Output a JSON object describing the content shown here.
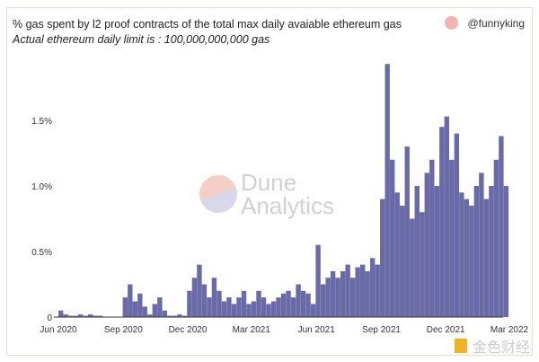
{
  "header": {
    "title": "% gas spent by l2 proof contracts of the total max daily avaiable ethereum gas",
    "subtitle": "Actual ethereum daily limit is : 100,000,000,000 gas",
    "author": "@funnyking"
  },
  "watermark": {
    "line1": "Dune",
    "line2": "Analytics"
  },
  "corner_logo": "金色财经",
  "colors": {
    "bar": "#6b6aa8",
    "accent": "#f2b5ad"
  },
  "chart_data": {
    "type": "bar",
    "title": "% gas spent by l2 proof contracts of the total max daily avaiable ethereum gas",
    "xlabel": "",
    "ylabel": "",
    "ylim": [
      0,
      2.0
    ],
    "grid": false,
    "legend": "none",
    "y_ticks": [
      {
        "v": 0,
        "label": "0"
      },
      {
        "v": 0.5,
        "label": "0.5%"
      },
      {
        "v": 1.0,
        "label": "1.0%"
      },
      {
        "v": 1.5,
        "label": "1.5%"
      }
    ],
    "x_ticks": [
      {
        "d": "2020-06-01",
        "label": "Jun 2020"
      },
      {
        "d": "2020-09-01",
        "label": "Sep 2020"
      },
      {
        "d": "2020-12-01",
        "label": "Dec 2020"
      },
      {
        "d": "2021-03-01",
        "label": "Mar 2021"
      },
      {
        "d": "2021-06-01",
        "label": "Jun 2021"
      },
      {
        "d": "2021-09-01",
        "label": "Sep 2021"
      },
      {
        "d": "2021-12-01",
        "label": "Dec 2021"
      },
      {
        "d": "2022-03-01",
        "label": "Mar 2022"
      }
    ],
    "x": [
      "2020-06-01",
      "2020-06-08",
      "2020-06-15",
      "2020-06-22",
      "2020-06-29",
      "2020-07-06",
      "2020-07-13",
      "2020-07-20",
      "2020-07-27",
      "2020-08-03",
      "2020-08-10",
      "2020-08-17",
      "2020-08-24",
      "2020-08-31",
      "2020-09-07",
      "2020-09-14",
      "2020-09-21",
      "2020-09-28",
      "2020-10-05",
      "2020-10-12",
      "2020-10-19",
      "2020-10-26",
      "2020-11-02",
      "2020-11-09",
      "2020-11-16",
      "2020-11-23",
      "2020-11-30",
      "2020-12-07",
      "2020-12-14",
      "2020-12-21",
      "2020-12-28",
      "2021-01-04",
      "2021-01-11",
      "2021-01-18",
      "2021-01-25",
      "2021-02-01",
      "2021-02-08",
      "2021-02-15",
      "2021-02-22",
      "2021-03-01",
      "2021-03-08",
      "2021-03-15",
      "2021-03-22",
      "2021-03-29",
      "2021-04-05",
      "2021-04-12",
      "2021-04-19",
      "2021-04-26",
      "2021-05-03",
      "2021-05-10",
      "2021-05-17",
      "2021-05-24",
      "2021-05-31",
      "2021-06-07",
      "2021-06-14",
      "2021-06-21",
      "2021-06-28",
      "2021-07-05",
      "2021-07-12",
      "2021-07-19",
      "2021-07-26",
      "2021-08-02",
      "2021-08-09",
      "2021-08-16",
      "2021-08-23",
      "2021-08-30",
      "2021-09-06",
      "2021-09-13",
      "2021-09-20",
      "2021-09-27",
      "2021-10-04",
      "2021-10-11",
      "2021-10-18",
      "2021-10-25",
      "2021-11-01",
      "2021-11-08",
      "2021-11-15",
      "2021-11-22",
      "2021-11-29",
      "2021-12-06",
      "2021-12-13",
      "2021-12-20",
      "2021-12-27",
      "2022-01-03",
      "2022-01-10",
      "2022-01-17",
      "2022-01-24",
      "2022-01-31",
      "2022-02-07",
      "2022-02-14",
      "2022-02-21"
    ],
    "values": [
      0.05,
      0.02,
      0.01,
      0.01,
      0.02,
      0.01,
      0.02,
      0.01,
      0.01,
      0,
      0,
      0,
      0,
      0.15,
      0.25,
      0.12,
      0.18,
      0.08,
      0.02,
      0.1,
      0.15,
      0.05,
      0.01,
      0.01,
      0.02,
      0.01,
      0.2,
      0.3,
      0.4,
      0.25,
      0.15,
      0.3,
      0.2,
      0.12,
      0.15,
      0.1,
      0.15,
      0.2,
      0.1,
      0.12,
      0.2,
      0.15,
      0.1,
      0.12,
      0.15,
      0.18,
      0.2,
      0.15,
      0.25,
      0.2,
      0.18,
      0.1,
      0.55,
      0.25,
      0.3,
      0.35,
      0.3,
      0.35,
      0.4,
      0.3,
      0.38,
      0.4,
      0.35,
      0.45,
      0.4,
      0.9,
      1.93,
      1.2,
      0.95,
      0.85,
      1.3,
      0.75,
      1.0,
      0.8,
      1.1,
      1.2,
      1.0,
      1.45,
      1.53,
      1.2,
      1.4,
      0.95,
      0.9,
      0.85,
      1.0,
      1.1,
      0.9,
      1.0,
      1.2,
      1.38,
      1.0
    ]
  }
}
